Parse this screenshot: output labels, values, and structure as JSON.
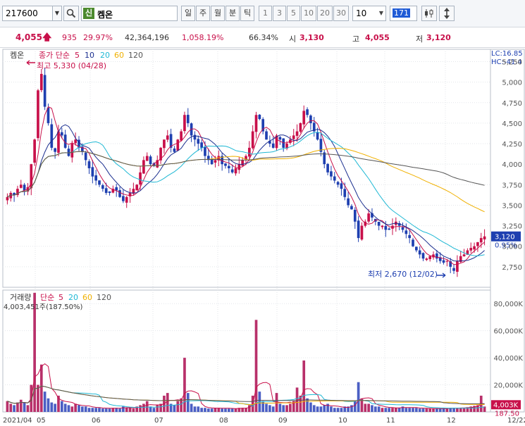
{
  "toolbar": {
    "code": "217600",
    "badge": "신",
    "name": "켐온",
    "periods": [
      "일",
      "주",
      "월",
      "분",
      "틱"
    ],
    "active_period": "일",
    "intervals": [
      "1",
      "3",
      "5",
      "10",
      "20",
      "30"
    ],
    "count_select": "10",
    "view_count": "171"
  },
  "info": {
    "price": "4,055",
    "change": "935",
    "change_pct": "29.97%",
    "volume": "42,364,196",
    "volume_pct": "1,058.19%",
    "turnover": "66.34%",
    "open_label": "시",
    "open": "3,130",
    "high_label": "고",
    "high": "4,055",
    "low_label": "저",
    "low": "3,120"
  },
  "price_panel": {
    "legend_name": "켐온",
    "legend_ma_label": "종가 단순",
    "legend_periods": [
      "5",
      "10",
      "20",
      "60",
      "120"
    ],
    "lc": "LC:16.85",
    "hc": "HC:-41.4",
    "high_annotation": "최고 5,330 (04/28)",
    "low_annotation": "최저 2,670 (12/02)",
    "last_price_tag": "3,120",
    "pct_tag": "0.95%"
  },
  "volume_panel": {
    "legend_name": "거래량",
    "legend_ma_label": "단순",
    "legend_periods": [
      "5",
      "20",
      "60",
      "120"
    ],
    "volume_readout": "4,003,451주(187.50%)",
    "volume_tag": "4,003K",
    "pct_tag": "187.50"
  },
  "colors": {
    "up": "#c8104a",
    "down": "#1e3fb0",
    "ma5": "#c8104a",
    "ma10": "#1b2f8f",
    "ma20": "#1fb8d4",
    "ma60": "#f0b000",
    "ma120": "#555555"
  },
  "chart_data": {
    "type": "candlestick",
    "x_ticks": [
      "2021/04",
      "05",
      "06",
      "07",
      "08",
      "09",
      "10",
      "11",
      "12",
      "12/22"
    ],
    "price_axis": {
      "ylim": [
        2500,
        5400
      ],
      "ticks": [
        "2,750",
        "3,000",
        "3,250",
        "3,500",
        "3,750",
        "4,000",
        "4,250",
        "4,500",
        "4,750",
        "5,000",
        "5,250"
      ]
    },
    "volume_axis": {
      "ylim": [
        0,
        90000
      ],
      "ticks": [
        "20,000K",
        "40,000K",
        "60,000K",
        "80,000K"
      ]
    },
    "close_series": [
      3600,
      3650,
      3620,
      3700,
      3750,
      3680,
      3720,
      4000,
      4300,
      4900,
      5100,
      4700,
      4500,
      4200,
      4150,
      4400,
      4350,
      4200,
      4100,
      4250,
      4300,
      4200,
      4150,
      4050,
      3950,
      3850,
      3800,
      3750,
      3700,
      3650,
      3650,
      3700,
      3680,
      3600,
      3550,
      3600,
      3650,
      3700,
      3750,
      3900,
      4050,
      4100,
      4000,
      3980,
      4050,
      4200,
      4300,
      4350,
      4200,
      4150,
      4300,
      4400,
      4600,
      4500,
      4350,
      4300,
      4250,
      4200,
      4100,
      4050,
      4000,
      4050,
      4100,
      4000,
      3980,
      3950,
      3900,
      3950,
      4000,
      4050,
      4100,
      4200,
      4400,
      4600,
      4550,
      4400,
      4300,
      4250,
      4200,
      4350,
      4300,
      4200,
      4250,
      4300,
      4350,
      4400,
      4500,
      4650,
      4600,
      4500,
      4400,
      4300,
      4150,
      4000,
      3900,
      3850,
      3800,
      3750,
      3700,
      3600,
      3500,
      3450,
      3300,
      3100,
      3250,
      3300,
      3400,
      3350,
      3300,
      3250,
      3250,
      3200,
      3200,
      3250,
      3300,
      3250,
      3200,
      3150,
      3100,
      3000,
      2950,
      2900,
      2850,
      2850,
      2880,
      2900,
      2850,
      2820,
      2800,
      2820,
      2750,
      2700,
      2820,
      2880,
      2900,
      2950,
      2980,
      3000,
      3050,
      3100,
      3120
    ],
    "volume_series": [
      8000,
      6000,
      5000,
      7000,
      9000,
      7000,
      5000,
      20000,
      88000,
      20000,
      35000,
      15000,
      10000,
      7000,
      6000,
      12000,
      8000,
      6000,
      5000,
      4000,
      6000,
      5000,
      4000,
      4000,
      3000,
      3000,
      3000,
      3000,
      2500,
      2500,
      2500,
      3000,
      3000,
      2500,
      4000,
      3000,
      3000,
      2500,
      4000,
      5000,
      6000,
      8000,
      4000,
      3000,
      5000,
      6000,
      12000,
      14000,
      6000,
      5000,
      8000,
      10000,
      40000,
      14000,
      6000,
      4000,
      4000,
      3000,
      3000,
      2500,
      2500,
      3000,
      3000,
      2500,
      2500,
      2500,
      2500,
      2500,
      3000,
      3000,
      3000,
      5000,
      12000,
      68000,
      15000,
      8000,
      6000,
      5000,
      4000,
      14000,
      6000,
      5000,
      5000,
      6000,
      8000,
      18000,
      12000,
      38000,
      10000,
      7000,
      5000,
      4000,
      4000,
      5000,
      6000,
      4000,
      3000,
      3000,
      3000,
      4000,
      4000,
      5000,
      8000,
      22000,
      10000,
      6000,
      6000,
      5000,
      4000,
      4000,
      3000,
      3000,
      3000,
      3000,
      3000,
      3000,
      4000,
      3000,
      3000,
      3000,
      3000,
      2500,
      2500,
      2500,
      2500,
      2500,
      2500,
      2500,
      2500,
      2500,
      3000,
      3000,
      3000,
      3000,
      3000,
      3500,
      4000,
      4500,
      5000,
      12000,
      4003
    ]
  }
}
